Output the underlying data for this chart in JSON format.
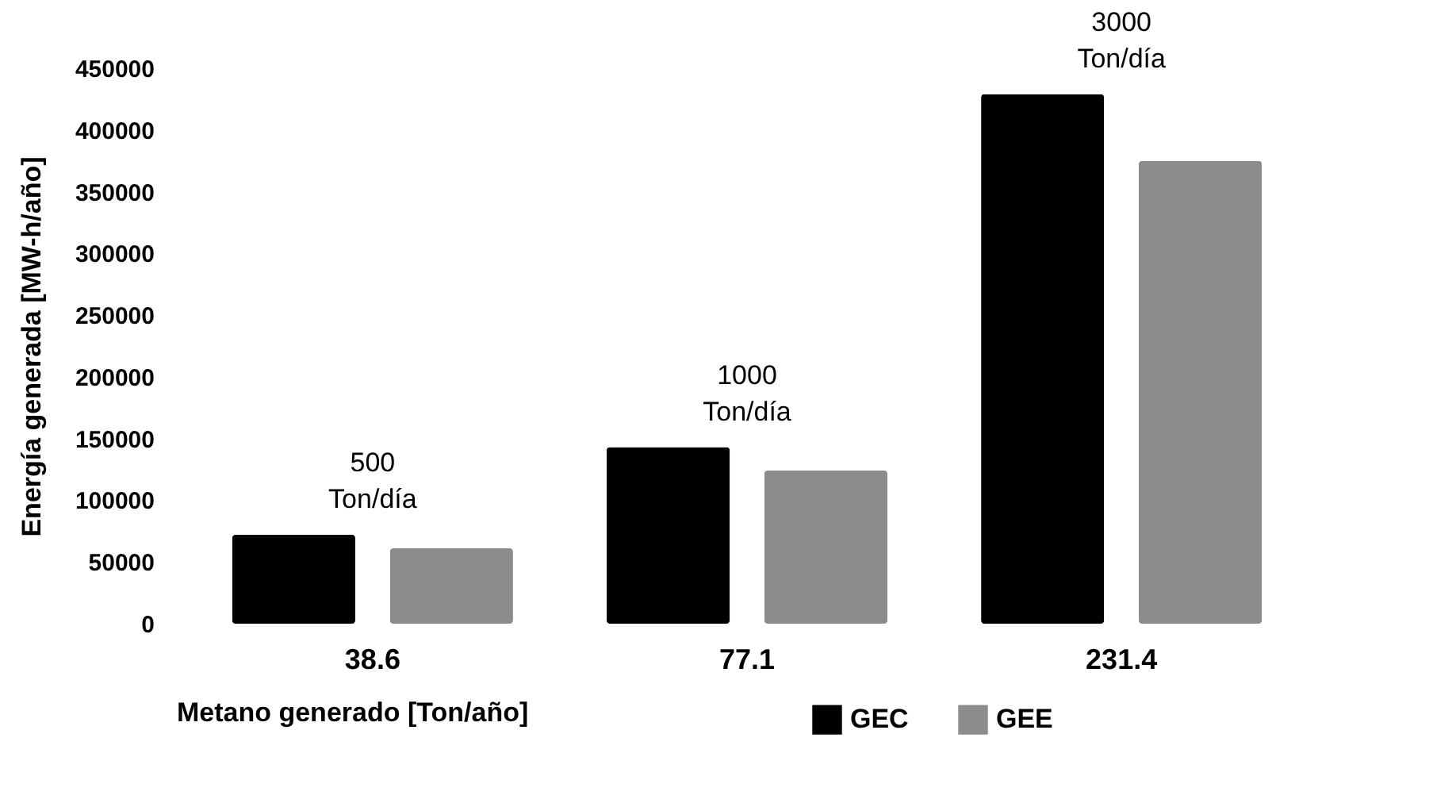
{
  "chart_data": {
    "type": "bar",
    "xlabel": "Metano generado [Ton/año]",
    "ylabel": "Energía generada [MW-h/año]",
    "categories": [
      "38.6",
      "77.1",
      "231.4"
    ],
    "series": [
      {
        "name": "GEC",
        "color": "#000000",
        "values": [
          72000,
          143000,
          429000
        ]
      },
      {
        "name": "GEE",
        "color": "#8c8c8c",
        "values": [
          61000,
          124000,
          375000
        ]
      }
    ],
    "ylim": [
      0,
      450000
    ],
    "yticks": [
      0,
      50000,
      100000,
      150000,
      200000,
      250000,
      300000,
      350000,
      400000,
      450000
    ],
    "annotations": [
      "500\nTon/día",
      "1000\nTon/día",
      "3000\nTon/día"
    ],
    "legend": "bottom"
  }
}
